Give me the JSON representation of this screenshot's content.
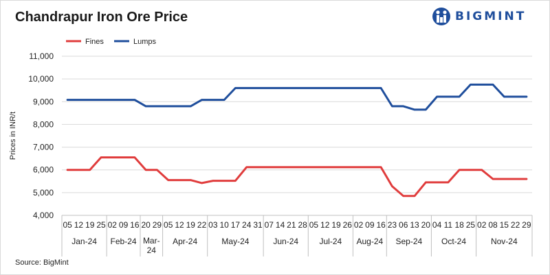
{
  "title": "Chandrapur Iron Ore Price",
  "brand": {
    "name": "BIGMINT",
    "icon": "bigmint-logo-icon",
    "color": "#1f4e9c"
  },
  "source": "Source: BigMint",
  "chart_data": {
    "type": "line",
    "title": "Chandrapur Iron Ore Price",
    "xlabel": "",
    "ylabel": "Prices in INR/t",
    "ylim": [
      4000,
      11000
    ],
    "yticks": [
      4000,
      5000,
      6000,
      7000,
      8000,
      9000,
      10000,
      11000
    ],
    "ytick_labels": [
      "4,000",
      "5,000",
      "6,000",
      "7,000",
      "8,000",
      "9,000",
      "10,000",
      "11,000"
    ],
    "grid": true,
    "legend_position": "top-left",
    "x": [
      "05",
      "12",
      "19",
      "25",
      "02",
      "09",
      "16",
      "20",
      "29",
      "05",
      "12",
      "19",
      "22",
      "03",
      "10",
      "17",
      "24",
      "31",
      "07",
      "14",
      "21",
      "28",
      "05",
      "12",
      "19",
      "26",
      "02",
      "09",
      "16",
      "23",
      "06",
      "13",
      "20",
      "04",
      "11",
      "18",
      "25",
      "02",
      "08",
      "15",
      "22",
      "29"
    ],
    "month_groups": [
      {
        "label": "Jan-24",
        "count": 4
      },
      {
        "label": "Feb-24",
        "count": 3
      },
      {
        "label": "Mar-24",
        "count": 2
      },
      {
        "label": "Apr-24",
        "count": 4
      },
      {
        "label": "May-24",
        "count": 5
      },
      {
        "label": "Jun-24",
        "count": 4
      },
      {
        "label": "Jul-24",
        "count": 4
      },
      {
        "label": "Aug-24",
        "count": 3
      },
      {
        "label": "Sep-24",
        "count": 4
      },
      {
        "label": "Oct-24",
        "count": 4
      },
      {
        "label": "Nov-24",
        "count": 5
      }
    ],
    "series": [
      {
        "name": "Fines",
        "color": "#e03c3c",
        "values": [
          6000,
          6000,
          6000,
          6550,
          6550,
          6550,
          6550,
          6000,
          6000,
          5550,
          5550,
          5550,
          5420,
          5520,
          5520,
          5520,
          6120,
          6120,
          6120,
          6120,
          6120,
          6120,
          6120,
          6120,
          6120,
          6120,
          6120,
          6120,
          6120,
          5280,
          4850,
          4850,
          5450,
          5450,
          5450,
          6000,
          6000,
          6000,
          5600,
          5600,
          5600,
          5600
        ]
      },
      {
        "name": "Lumps",
        "color": "#1f4e9c",
        "values": [
          9080,
          9080,
          9080,
          9080,
          9080,
          9080,
          9080,
          8800,
          8800,
          8800,
          8800,
          8800,
          9080,
          9080,
          9080,
          9600,
          9600,
          9600,
          9600,
          9600,
          9600,
          9600,
          9600,
          9600,
          9600,
          9600,
          9600,
          9600,
          9600,
          8800,
          8800,
          8650,
          8650,
          9220,
          9220,
          9220,
          9750,
          9750,
          9750,
          9220,
          9220,
          9220
        ]
      }
    ]
  }
}
